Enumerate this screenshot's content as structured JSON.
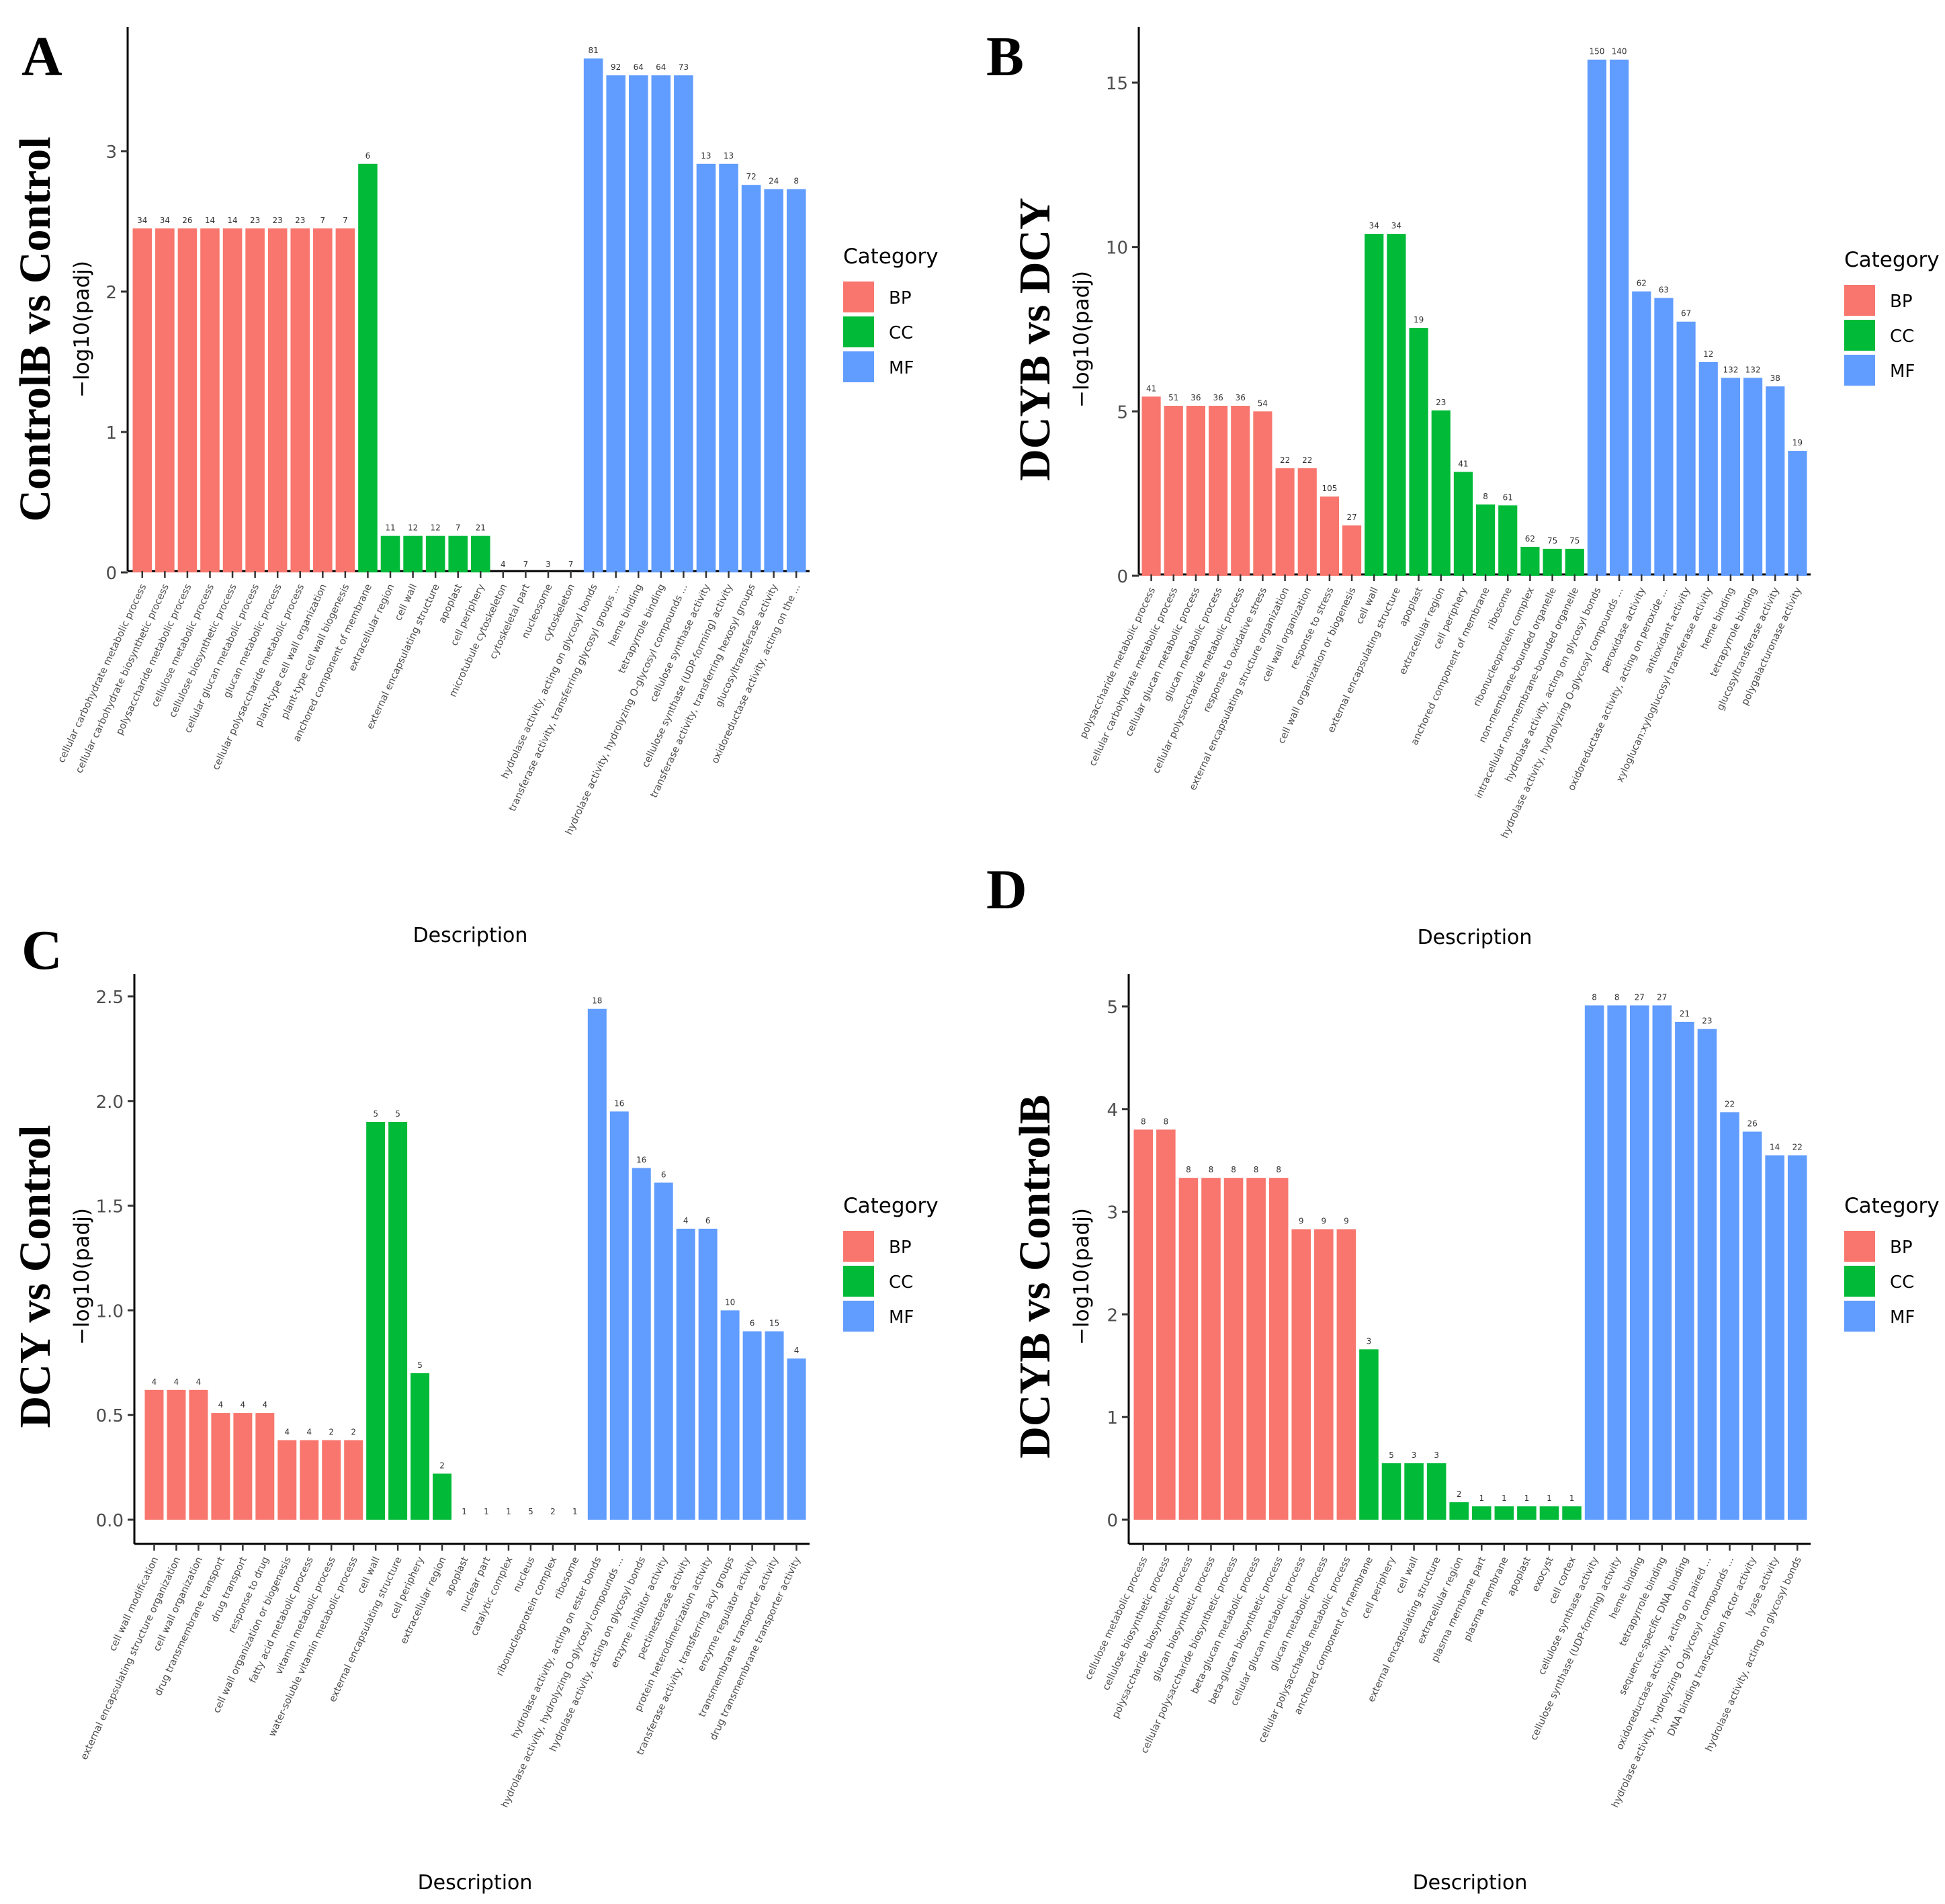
{
  "colors": {
    "BP": "#F8766D",
    "CC": "#00BA38",
    "MF": "#619CFF"
  },
  "chart_data": [
    {
      "panel": "A",
      "type": "bar",
      "title": "ControlB vs Control",
      "ylabel": "−log10(padj)",
      "xlabel": "Description",
      "ylim": [
        0,
        3.87
      ],
      "yticks": [
        0,
        1,
        2,
        3
      ],
      "legend": {
        "title": "Category",
        "items": [
          "BP",
          "CC",
          "MF"
        ],
        "position": "right"
      },
      "bars": [
        {
          "label": "cellular carbohydrate metabolic process",
          "value": 2.45,
          "count": "34",
          "category": "BP"
        },
        {
          "label": "cellular carbohydrate biosynthetic process",
          "value": 2.45,
          "count": "34",
          "category": "BP"
        },
        {
          "label": "polysaccharide metabolic process",
          "value": 2.45,
          "count": "26",
          "category": "BP"
        },
        {
          "label": "cellulose metabolic process",
          "value": 2.45,
          "count": "14",
          "category": "BP"
        },
        {
          "label": "cellulose biosynthetic process",
          "value": 2.45,
          "count": "14",
          "category": "BP"
        },
        {
          "label": "cellular glucan metabolic process",
          "value": 2.45,
          "count": "23",
          "category": "BP"
        },
        {
          "label": "glucan metabolic process",
          "value": 2.45,
          "count": "23",
          "category": "BP"
        },
        {
          "label": "cellular polysaccharide metabolic process",
          "value": 2.45,
          "count": "23",
          "category": "BP"
        },
        {
          "label": "plant-type cell wall organization",
          "value": 2.45,
          "count": "7",
          "category": "BP"
        },
        {
          "label": "plant-type cell wall biogenesis",
          "value": 2.45,
          "count": "7",
          "category": "BP"
        },
        {
          "label": "anchored component of membrane",
          "value": 2.91,
          "count": "6",
          "category": "CC"
        },
        {
          "label": "extracellular region",
          "value": 0.26,
          "count": "11",
          "category": "CC"
        },
        {
          "label": "cell wall",
          "value": 0.26,
          "count": "12",
          "category": "CC"
        },
        {
          "label": "external encapsulating structure",
          "value": 0.26,
          "count": "12",
          "category": "CC"
        },
        {
          "label": "apoplast",
          "value": 0.26,
          "count": "7",
          "category": "CC"
        },
        {
          "label": "cell periphery",
          "value": 0.26,
          "count": "21",
          "category": "CC"
        },
        {
          "label": "microtubule cytoskeleton",
          "value": 0,
          "count": "4",
          "category": "CC"
        },
        {
          "label": "cytoskeletal part",
          "value": 0,
          "count": "7",
          "category": "CC"
        },
        {
          "label": "nucleosome",
          "value": 0,
          "count": "3",
          "category": "CC"
        },
        {
          "label": "cytoskeleton",
          "value": 0,
          "count": "7",
          "category": "CC"
        },
        {
          "label": "hydrolase activity, acting on glycosyl bonds",
          "value": 3.66,
          "count": "81",
          "category": "MF"
        },
        {
          "label": "transferase activity, transferring glycosyl groups ...",
          "value": 3.54,
          "count": "92",
          "category": "MF"
        },
        {
          "label": "heme binding",
          "value": 3.54,
          "count": "64",
          "category": "MF"
        },
        {
          "label": "tetrapyrrole binding",
          "value": 3.54,
          "count": "64",
          "category": "MF"
        },
        {
          "label": "hydrolase activity, hydrolyzing O-glycosyl compounds ...",
          "value": 3.54,
          "count": "73",
          "category": "MF"
        },
        {
          "label": "cellulose synthase activity",
          "value": 2.91,
          "count": "13",
          "category": "MF"
        },
        {
          "label": "cellulose synthase (UDP-forming) activity",
          "value": 2.91,
          "count": "13",
          "category": "MF"
        },
        {
          "label": "transferase activity, transferring hexosyl groups",
          "value": 2.76,
          "count": "72",
          "category": "MF"
        },
        {
          "label": "glucosyltransferase activity",
          "value": 2.73,
          "count": "24",
          "category": "MF"
        },
        {
          "label": "oxidoreductase activity, acting on the ...",
          "value": 2.73,
          "count": "8",
          "category": "MF"
        }
      ]
    },
    {
      "panel": "B",
      "type": "bar",
      "title": "DCYB vs DCY",
      "ylabel": "−log10(padj)",
      "xlabel": "Description",
      "ylim": [
        0,
        16.4
      ],
      "yticks": [
        0,
        5,
        10,
        15
      ],
      "legend": {
        "title": "Category",
        "items": [
          "BP",
          "CC",
          "MF"
        ],
        "position": "right"
      },
      "bars": [
        {
          "label": "polysaccharide metabolic process",
          "value": 5.45,
          "count": "41",
          "category": "BP"
        },
        {
          "label": "cellular carbohydrate metabolic process",
          "value": 5.17,
          "count": "51",
          "category": "BP"
        },
        {
          "label": "cellular glucan metabolic process",
          "value": 5.17,
          "count": "36",
          "category": "BP"
        },
        {
          "label": "glucan metabolic process",
          "value": 5.17,
          "count": "36",
          "category": "BP"
        },
        {
          "label": "cellular polysaccharide metabolic process",
          "value": 5.17,
          "count": "36",
          "category": "BP"
        },
        {
          "label": "response to oxidative stress",
          "value": 5.0,
          "count": "54",
          "category": "BP"
        },
        {
          "label": "external encapsulating structure organization",
          "value": 3.27,
          "count": "22",
          "category": "BP"
        },
        {
          "label": "cell wall organization",
          "value": 3.27,
          "count": "22",
          "category": "BP"
        },
        {
          "label": "response to stress",
          "value": 2.41,
          "count": "105",
          "category": "BP"
        },
        {
          "label": "cell wall organization or biogenesis",
          "value": 1.53,
          "count": "27",
          "category": "BP"
        },
        {
          "label": "cell wall",
          "value": 10.4,
          "count": "34",
          "category": "CC"
        },
        {
          "label": "external encapsulating structure",
          "value": 10.4,
          "count": "34",
          "category": "CC"
        },
        {
          "label": "apoplast",
          "value": 7.54,
          "count": "19",
          "category": "CC"
        },
        {
          "label": "extracellular region",
          "value": 5.03,
          "count": "23",
          "category": "CC"
        },
        {
          "label": "cell periphery",
          "value": 3.16,
          "count": "41",
          "category": "CC"
        },
        {
          "label": "anchored component of membrane",
          "value": 2.17,
          "count": "8",
          "category": "CC"
        },
        {
          "label": "ribosome",
          "value": 2.14,
          "count": "61",
          "category": "CC"
        },
        {
          "label": "ribonucleoprotein complex",
          "value": 0.88,
          "count": "62",
          "category": "CC"
        },
        {
          "label": "non-membrane-bounded organelle",
          "value": 0.82,
          "count": "75",
          "category": "CC"
        },
        {
          "label": "intracellular non-membrane-bounded organelle",
          "value": 0.82,
          "count": "75",
          "category": "CC"
        },
        {
          "label": "hydrolase activity, acting on glycosyl bonds",
          "value": 15.7,
          "count": "150",
          "category": "MF"
        },
        {
          "label": "hydrolase activity, hydrolyzing O-glycosyl compounds ...",
          "value": 15.7,
          "count": "140",
          "category": "MF"
        },
        {
          "label": "peroxidase activity",
          "value": 8.65,
          "count": "62",
          "category": "MF"
        },
        {
          "label": "oxidoreductase activity, acting on peroxide ...",
          "value": 8.45,
          "count": "63",
          "category": "MF"
        },
        {
          "label": "antioxidant activity",
          "value": 7.73,
          "count": "67",
          "category": "MF"
        },
        {
          "label": "xyloglucan:xyloglucosyl transferase activity",
          "value": 6.5,
          "count": "12",
          "category": "MF"
        },
        {
          "label": "heme binding",
          "value": 6.02,
          "count": "132",
          "category": "MF"
        },
        {
          "label": "tetrapyrrole binding",
          "value": 6.02,
          "count": "132",
          "category": "MF"
        },
        {
          "label": "glucosyltransferase activity",
          "value": 5.76,
          "count": "38",
          "category": "MF"
        },
        {
          "label": "polygalacturonase activity",
          "value": 3.8,
          "count": "19",
          "category": "MF"
        }
      ]
    },
    {
      "panel": "C",
      "type": "bar",
      "title": "DCY vs Control",
      "ylabel": "−log10(padj)",
      "xlabel": "Description",
      "ylim": [
        0,
        2.55
      ],
      "yticks": [
        0.0,
        0.5,
        1.0,
        1.5,
        2.0,
        2.5
      ],
      "legend": {
        "title": "Category",
        "items": [
          "BP",
          "CC",
          "MF"
        ],
        "position": "right"
      },
      "bars": [
        {
          "label": "cell wall modification",
          "value": 0.62,
          "count": "4",
          "category": "BP"
        },
        {
          "label": "external encapsulating structure organization",
          "value": 0.62,
          "count": "4",
          "category": "BP"
        },
        {
          "label": "cell wall organization",
          "value": 0.62,
          "count": "4",
          "category": "BP"
        },
        {
          "label": "drug transmembrane transport",
          "value": 0.51,
          "count": "4",
          "category": "BP"
        },
        {
          "label": "drug transport",
          "value": 0.51,
          "count": "4",
          "category": "BP"
        },
        {
          "label": "response to drug",
          "value": 0.51,
          "count": "4",
          "category": "BP"
        },
        {
          "label": "cell wall organization or biogenesis",
          "value": 0.38,
          "count": "4",
          "category": "BP"
        },
        {
          "label": "fatty acid metabolic process",
          "value": 0.38,
          "count": "4",
          "category": "BP"
        },
        {
          "label": "vitamin metabolic process",
          "value": 0.38,
          "count": "2",
          "category": "BP"
        },
        {
          "label": "water-soluble vitamin metabolic process",
          "value": 0.38,
          "count": "2",
          "category": "BP"
        },
        {
          "label": "cell wall",
          "value": 1.9,
          "count": "5",
          "category": "CC"
        },
        {
          "label": "external encapsulating structure",
          "value": 1.9,
          "count": "5",
          "category": "CC"
        },
        {
          "label": "cell periphery",
          "value": 0.7,
          "count": "5",
          "category": "CC"
        },
        {
          "label": "extracellular region",
          "value": 0.22,
          "count": "2",
          "category": "CC"
        },
        {
          "label": "apoplast",
          "value": 0,
          "count": "1",
          "category": "CC"
        },
        {
          "label": "nuclear part",
          "value": 0,
          "count": "1",
          "category": "CC"
        },
        {
          "label": "catalytic complex",
          "value": 0,
          "count": "1",
          "category": "CC"
        },
        {
          "label": "nucleus",
          "value": 0,
          "count": "5",
          "category": "CC"
        },
        {
          "label": "ribonucleoprotein complex",
          "value": 0,
          "count": "2",
          "category": "CC"
        },
        {
          "label": "ribosome",
          "value": 0,
          "count": "1",
          "category": "CC"
        },
        {
          "label": "hydrolase activity, acting on ester bonds",
          "value": 2.44,
          "count": "18",
          "category": "MF"
        },
        {
          "label": "hydrolase activity, hydrolyzing O-glycosyl compounds ...",
          "value": 1.95,
          "count": "16",
          "category": "MF"
        },
        {
          "label": "hydrolase activity, acting on glycosyl bonds",
          "value": 1.68,
          "count": "16",
          "category": "MF"
        },
        {
          "label": "enzyme inhibitor activity",
          "value": 1.61,
          "count": "6",
          "category": "MF"
        },
        {
          "label": "pectinesterase activity",
          "value": 1.39,
          "count": "4",
          "category": "MF"
        },
        {
          "label": "protein heterodimerization activity",
          "value": 1.39,
          "count": "6",
          "category": "MF"
        },
        {
          "label": "transferase activity, transferring acyl groups",
          "value": 1.0,
          "count": "10",
          "category": "MF"
        },
        {
          "label": "enzyme regulator activity",
          "value": 0.9,
          "count": "6",
          "category": "MF"
        },
        {
          "label": "transmembrane transporter activity",
          "value": 0.9,
          "count": "15",
          "category": "MF"
        },
        {
          "label": "drug transmembrane transporter activity",
          "value": 0.77,
          "count": "4",
          "category": "MF"
        }
      ]
    },
    {
      "panel": "D",
      "type": "bar",
      "title": "DCYB vs ControlB",
      "ylabel": "−log10(padj)",
      "xlabel": "Description",
      "ylim": [
        0,
        5.23
      ],
      "yticks": [
        0,
        1,
        2,
        3,
        4,
        5
      ],
      "legend": {
        "title": "Category",
        "items": [
          "BP",
          "CC",
          "MF"
        ],
        "position": "right"
      },
      "bars": [
        {
          "label": "cellulose metabolic process",
          "value": 3.8,
          "count": "8",
          "category": "BP"
        },
        {
          "label": "cellulose biosynthetic process",
          "value": 3.8,
          "count": "8",
          "category": "BP"
        },
        {
          "label": "polysaccharide biosynthetic process",
          "value": 3.33,
          "count": "8",
          "category": "BP"
        },
        {
          "label": "glucan biosynthetic process",
          "value": 3.33,
          "count": "8",
          "category": "BP"
        },
        {
          "label": "cellular polysaccharide biosynthetic process",
          "value": 3.33,
          "count": "8",
          "category": "BP"
        },
        {
          "label": "beta-glucan metabolic process",
          "value": 3.33,
          "count": "8",
          "category": "BP"
        },
        {
          "label": "beta-glucan biosynthetic process",
          "value": 3.33,
          "count": "8",
          "category": "BP"
        },
        {
          "label": "cellular glucan metabolic process",
          "value": 2.83,
          "count": "9",
          "category": "BP"
        },
        {
          "label": "glucan metabolic process",
          "value": 2.83,
          "count": "9",
          "category": "BP"
        },
        {
          "label": "cellular polysaccharide metabolic process",
          "value": 2.83,
          "count": "9",
          "category": "BP"
        },
        {
          "label": "anchored component of membrane",
          "value": 1.66,
          "count": "3",
          "category": "CC"
        },
        {
          "label": "cell periphery",
          "value": 0.55,
          "count": "5",
          "category": "CC"
        },
        {
          "label": "cell wall",
          "value": 0.55,
          "count": "3",
          "category": "CC"
        },
        {
          "label": "external encapsulating structure",
          "value": 0.55,
          "count": "3",
          "category": "CC"
        },
        {
          "label": "extracellular region",
          "value": 0.17,
          "count": "2",
          "category": "CC"
        },
        {
          "label": "plasma membrane part",
          "value": 0.13,
          "count": "1",
          "category": "CC"
        },
        {
          "label": "plasma membrane",
          "value": 0.13,
          "count": "1",
          "category": "CC"
        },
        {
          "label": "apoplast",
          "value": 0.13,
          "count": "1",
          "category": "CC"
        },
        {
          "label": "exocyst",
          "value": 0.13,
          "count": "1",
          "category": "CC"
        },
        {
          "label": "cell cortex",
          "value": 0.13,
          "count": "1",
          "category": "CC"
        },
        {
          "label": "cellulose synthase activity",
          "value": 5.01,
          "count": "8",
          "category": "MF"
        },
        {
          "label": "cellulose synthase (UDP-forming) activity",
          "value": 5.01,
          "count": "8",
          "category": "MF"
        },
        {
          "label": "heme binding",
          "value": 5.01,
          "count": "27",
          "category": "MF"
        },
        {
          "label": "tetrapyrrole binding",
          "value": 5.01,
          "count": "27",
          "category": "MF"
        },
        {
          "label": "sequence-specific DNA binding",
          "value": 4.85,
          "count": "21",
          "category": "MF"
        },
        {
          "label": "oxidoreductase activity, acting on paired ...",
          "value": 4.78,
          "count": "23",
          "category": "MF"
        },
        {
          "label": "hydrolase activity, hydrolyzing O-glycosyl compounds ...",
          "value": 3.97,
          "count": "22",
          "category": "MF"
        },
        {
          "label": "DNA binding transcription factor activity",
          "value": 3.78,
          "count": "26",
          "category": "MF"
        },
        {
          "label": "lyase activity",
          "value": 3.55,
          "count": "14",
          "category": "MF"
        },
        {
          "label": "hydrolase activity, acting on glycosyl bonds",
          "value": 3.55,
          "count": "22",
          "category": "MF"
        }
      ]
    }
  ]
}
